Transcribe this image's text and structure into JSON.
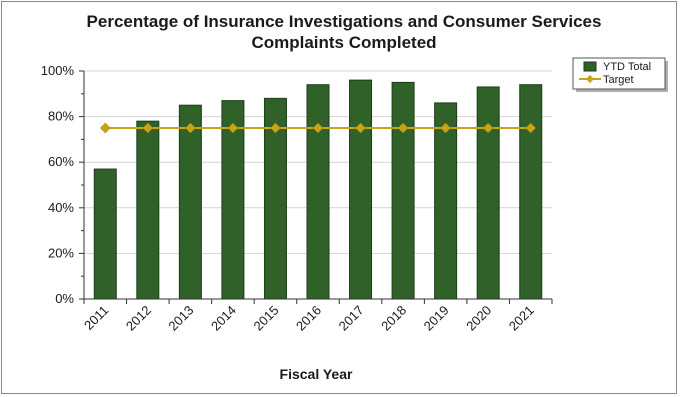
{
  "chart_data": {
    "type": "bar",
    "title_lines": [
      "Percentage of Insurance Investigations and Consumer Services",
      "Complaints Completed"
    ],
    "xlabel": "Fiscal Year",
    "ylabel": "",
    "categories": [
      "2011",
      "2012",
      "2013",
      "2014",
      "2015",
      "2016",
      "2017",
      "2018",
      "2019",
      "2020",
      "2021"
    ],
    "series": [
      {
        "name": "YTD Total",
        "kind": "bar",
        "color": "#2f6129",
        "values": [
          57,
          78,
          85,
          87,
          88,
          94,
          96,
          95,
          86,
          93,
          94
        ]
      },
      {
        "name": "Target",
        "kind": "line",
        "color": "#c8a415",
        "values": [
          75,
          75,
          75,
          75,
          75,
          75,
          75,
          75,
          75,
          75,
          75
        ]
      }
    ],
    "ylim": [
      0,
      100
    ],
    "yticks": [
      {
        "value": 0,
        "label": "0%"
      },
      {
        "value": 20,
        "label": "20%"
      },
      {
        "value": 40,
        "label": "40%"
      },
      {
        "value": 60,
        "label": "60%"
      },
      {
        "value": 80,
        "label": "80%"
      },
      {
        "value": 100,
        "label": "100%"
      }
    ],
    "grid": true,
    "legend_position": "top-right"
  }
}
